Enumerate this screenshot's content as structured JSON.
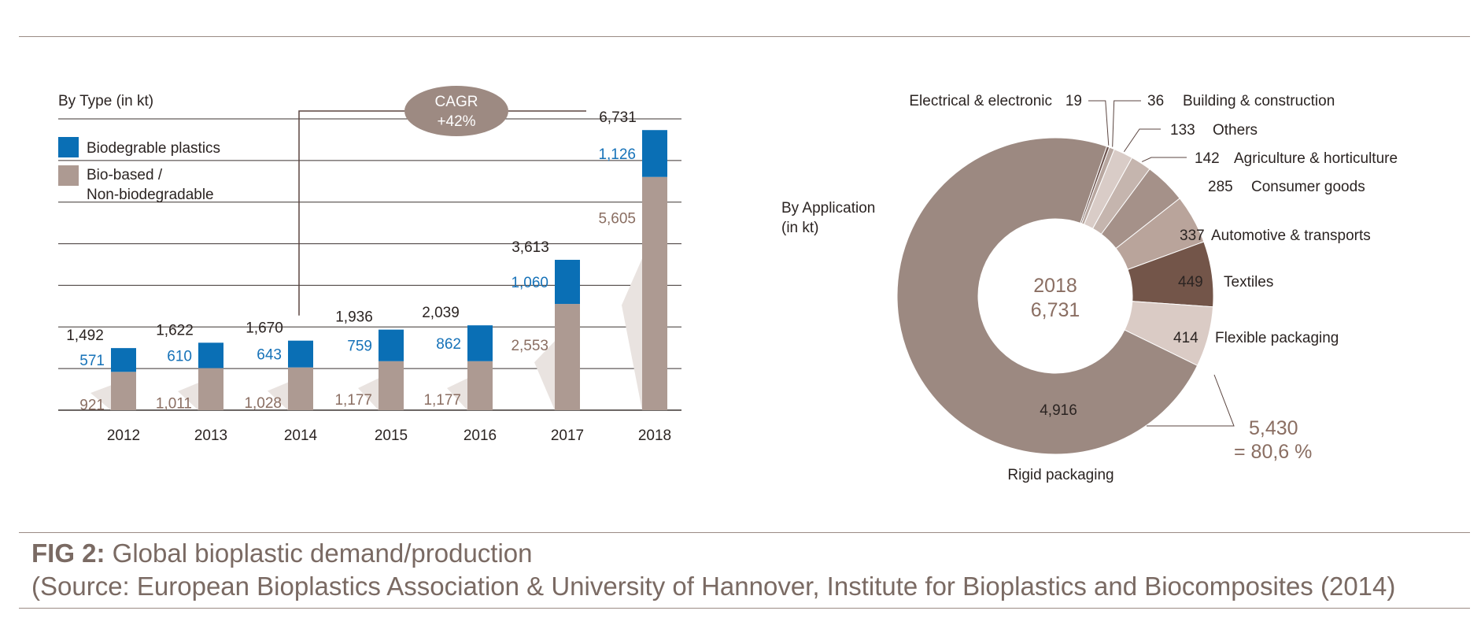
{
  "colors": {
    "biodegradable": "#0a6fb5",
    "biobased": "#ad9a92",
    "brown_text": "#8a6e62",
    "blue_text": "#1672b8",
    "dark_text": "#2b2422",
    "line": "#5b4540",
    "cagr_fill": "#9d8a82",
    "grid": "#3b3330"
  },
  "chart_data": [
    {
      "type": "bar",
      "title": "By Type (in kt)",
      "stacked": true,
      "categories": [
        "2012",
        "2013",
        "2014",
        "2015",
        "2016",
        "2017",
        "2018"
      ],
      "series": [
        {
          "name": "Bio-based / Non-biodegradable",
          "name_line1": "Bio-based /",
          "name_line2": "Non-biodegradable",
          "color": "#ad9a92",
          "values": [
            921,
            1011,
            1028,
            1177,
            1177,
            2553,
            5605
          ],
          "labels": [
            "921",
            "1,011",
            "1,028",
            "1,177",
            "1,177",
            "2,553",
            "5,605"
          ]
        },
        {
          "name": "Biodegrable plastics",
          "color": "#0a6fb5",
          "values": [
            571,
            610,
            643,
            759,
            862,
            1060,
            1126
          ],
          "labels": [
            "571",
            "610",
            "643",
            "759",
            "862",
            "1,060",
            "1,126"
          ]
        }
      ],
      "totals": [
        1492,
        1622,
        1670,
        1936,
        2039,
        3613,
        6731
      ],
      "total_labels": [
        "1,492",
        "1,622",
        "1,670",
        "1,936",
        "2,039",
        "3,613",
        "6,731"
      ],
      "ylim": [
        0,
        7000
      ],
      "grid": true,
      "legend_position": "top-left",
      "annotation": {
        "line1": "CAGR",
        "line2": "+42%"
      }
    },
    {
      "type": "pie",
      "donut": true,
      "title_line1": "By Application",
      "title_line2": "(in kt)",
      "center_line1": "2018",
      "center_line2": "6,731",
      "total": 6731,
      "slices": [
        {
          "label": "Electrical & electronic",
          "value": 19,
          "value_label": "19",
          "color": "#6f5650"
        },
        {
          "label": "Building & construction",
          "value": 36,
          "value_label": "36",
          "color": "#b8a7a0"
        },
        {
          "label": "Others",
          "value": 133,
          "value_label": "133",
          "color": "#d9ccc7"
        },
        {
          "label": "Agriculture & horticulture",
          "value": 142,
          "value_label": "142",
          "color": "#c5b5ae"
        },
        {
          "label": "Consumer goods",
          "value": 285,
          "value_label": "285",
          "color": "#a59189"
        },
        {
          "label": "Automotive & transports",
          "value": 337,
          "value_label": "337",
          "color": "#b9a49b"
        },
        {
          "label": "Textiles",
          "value": 449,
          "value_label": "449",
          "color": "#735549"
        },
        {
          "label": "Flexible packaging",
          "value": 414,
          "value_label": "414",
          "color": "#dacbc5"
        },
        {
          "label": "Rigid packaging",
          "value": 4916,
          "value_label": "4,916",
          "color": "#9c8981"
        }
      ],
      "bracket_line1": "5,430",
      "bracket_line2": "= 80,6 %"
    }
  ],
  "caption": {
    "fig_label": "FIG 2:",
    "title": " Global bioplastic demand/production",
    "source": "(Source: European Bioplastics Association & University of Hannover, Institute for Bioplastics and Biocomposites (2014)"
  }
}
